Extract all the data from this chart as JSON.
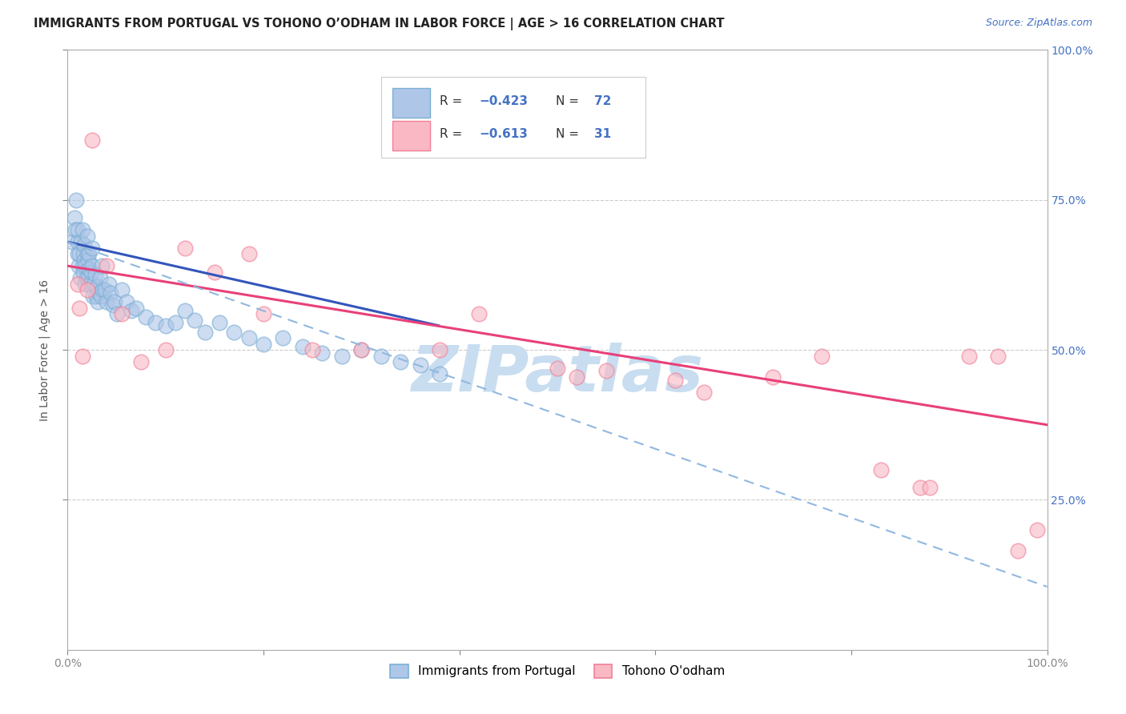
{
  "title": "IMMIGRANTS FROM PORTUGAL VS TOHONO O’ODHAM IN LABOR FORCE | AGE > 16 CORRELATION CHART",
  "source_text": "Source: ZipAtlas.com",
  "ylabel": "In Labor Force | Age > 16",
  "xlim": [
    0.0,
    1.0
  ],
  "ylim": [
    0.0,
    1.0
  ],
  "portugal_color": "#7bafd4",
  "portugal_fill": "#aec6e8",
  "tohono_color": "#f08098",
  "tohono_fill": "#f9b8c4",
  "trendline_portugal_color": "#3355bb",
  "trendline_tohono_color": "#e8407a",
  "trendline_combined_color": "#90b8e0",
  "trendline_combined_style": "--",
  "watermark_text": "ZIPatlas",
  "watermark_color": "#c8ddf0",
  "background_color": "#ffffff",
  "grid_color": "#cccccc",
  "portugal_scatter_x": [
    0.005,
    0.007,
    0.008,
    0.009,
    0.01,
    0.01,
    0.01,
    0.011,
    0.012,
    0.013,
    0.014,
    0.015,
    0.015,
    0.016,
    0.016,
    0.017,
    0.017,
    0.018,
    0.018,
    0.019,
    0.02,
    0.02,
    0.021,
    0.021,
    0.022,
    0.022,
    0.023,
    0.024,
    0.025,
    0.025,
    0.026,
    0.027,
    0.028,
    0.029,
    0.03,
    0.031,
    0.032,
    0.033,
    0.034,
    0.035,
    0.036,
    0.038,
    0.04,
    0.042,
    0.044,
    0.046,
    0.048,
    0.05,
    0.055,
    0.06,
    0.065,
    0.07,
    0.08,
    0.09,
    0.1,
    0.11,
    0.12,
    0.13,
    0.14,
    0.155,
    0.17,
    0.185,
    0.2,
    0.22,
    0.24,
    0.26,
    0.28,
    0.3,
    0.32,
    0.34,
    0.36,
    0.38
  ],
  "portugal_scatter_y": [
    0.68,
    0.72,
    0.7,
    0.75,
    0.66,
    0.68,
    0.7,
    0.64,
    0.66,
    0.62,
    0.68,
    0.64,
    0.7,
    0.63,
    0.66,
    0.65,
    0.675,
    0.61,
    0.64,
    0.62,
    0.66,
    0.69,
    0.62,
    0.65,
    0.635,
    0.66,
    0.61,
    0.63,
    0.64,
    0.67,
    0.59,
    0.61,
    0.625,
    0.59,
    0.605,
    0.58,
    0.595,
    0.62,
    0.59,
    0.64,
    0.6,
    0.6,
    0.58,
    0.61,
    0.595,
    0.575,
    0.58,
    0.56,
    0.6,
    0.58,
    0.565,
    0.57,
    0.555,
    0.545,
    0.54,
    0.545,
    0.565,
    0.55,
    0.53,
    0.545,
    0.53,
    0.52,
    0.51,
    0.52,
    0.505,
    0.495,
    0.49,
    0.5,
    0.49,
    0.48,
    0.475,
    0.46
  ],
  "tohono_scatter_x": [
    0.01,
    0.012,
    0.015,
    0.02,
    0.025,
    0.04,
    0.055,
    0.075,
    0.1,
    0.12,
    0.15,
    0.185,
    0.2,
    0.25,
    0.3,
    0.38,
    0.42,
    0.5,
    0.52,
    0.55,
    0.62,
    0.65,
    0.72,
    0.77,
    0.83,
    0.87,
    0.88,
    0.92,
    0.95,
    0.97,
    0.99
  ],
  "tohono_scatter_y": [
    0.61,
    0.57,
    0.49,
    0.6,
    0.85,
    0.64,
    0.56,
    0.48,
    0.5,
    0.67,
    0.63,
    0.66,
    0.56,
    0.5,
    0.5,
    0.5,
    0.56,
    0.47,
    0.455,
    0.465,
    0.45,
    0.43,
    0.455,
    0.49,
    0.3,
    0.27,
    0.27,
    0.49,
    0.49,
    0.165,
    0.2
  ],
  "portugal_trend_x": [
    0.0,
    0.38
  ],
  "portugal_trend_y": [
    0.68,
    0.54
  ],
  "tohono_trend_x": [
    0.0,
    1.0
  ],
  "tohono_trend_y": [
    0.64,
    0.375
  ],
  "combined_trend_x": [
    0.0,
    1.0
  ],
  "combined_trend_y": [
    0.68,
    0.105
  ]
}
